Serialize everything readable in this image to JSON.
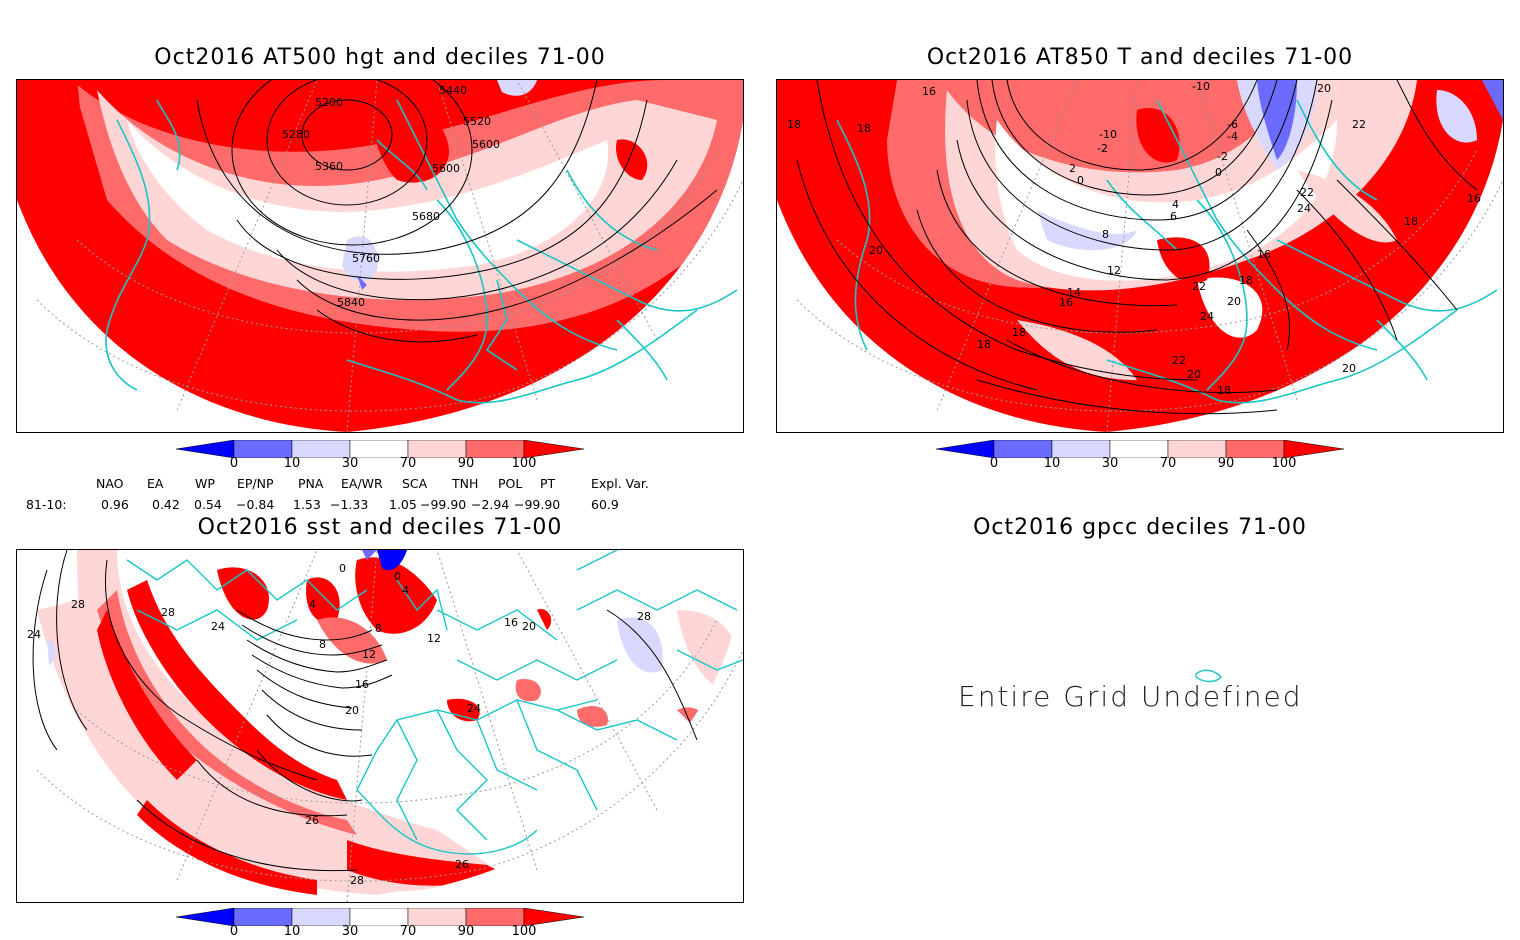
{
  "panels": [
    {
      "title": "Oct2016 AT500 hgt and deciles 71-00",
      "contour_labels": [
        "5200",
        "5280",
        "5360",
        "5440",
        "5520",
        "5600",
        "5600",
        "5680",
        "5760",
        "5840"
      ]
    },
    {
      "title": "Oct2016 AT850 T and deciles 71-00",
      "contour_labels": [
        "16",
        "18",
        "18",
        "20",
        "18",
        "18",
        "14",
        "16",
        "12",
        "8",
        "6",
        "4",
        "2",
        "0",
        "-2",
        "-10",
        "-10",
        "-6",
        "-4",
        "-2",
        "0",
        "22",
        "24",
        "22",
        "20",
        "18",
        "16",
        "24",
        "22",
        "20",
        "18",
        "20",
        "16",
        "18",
        "20",
        "22"
      ]
    },
    {
      "title": "Oct2016 sst and deciles 71-00",
      "contour_labels": [
        "28",
        "24",
        "28",
        "24",
        "0",
        "4",
        "0",
        "4",
        "8",
        "8",
        "12",
        "16",
        "20",
        "12",
        "16",
        "20",
        "24",
        "28",
        "26",
        "28",
        "26"
      ]
    },
    {
      "title": "Oct2016 gpcc deciles 71-00",
      "message": "Entire Grid Undefined"
    }
  ],
  "colorbar": {
    "ticks": [
      "0",
      "10",
      "30",
      "70",
      "90",
      "100"
    ],
    "colors": [
      "#0000ff",
      "#6b6bff",
      "#d9d9ff",
      "#ffffff",
      "#ffd6d6",
      "#ff6b6b",
      "#ff0000"
    ]
  },
  "indices": {
    "headers": [
      "NAO",
      "EA",
      "WP",
      "EP/NP",
      "PNA",
      "EA/WR",
      "SCA",
      "TNH",
      "POL",
      "PT",
      "Expl. Var."
    ],
    "row_label": "81-10:",
    "values": [
      "0.96",
      "0.42",
      "0.54",
      "−0.84",
      "1.53",
      "−1.33",
      "1.05",
      "−99.90",
      "−2.94",
      "−99.90",
      "60.9"
    ]
  },
  "legend_colors": {
    "coast": "#19c6c6",
    "contour": "#000000",
    "red_high": "#ff0000",
    "red_mid": "#ff6b6b",
    "red_low": "#ffd6d6",
    "blue_low": "#d9d9ff",
    "blue_mid": "#6b6bff",
    "blue_high": "#0000ff"
  }
}
